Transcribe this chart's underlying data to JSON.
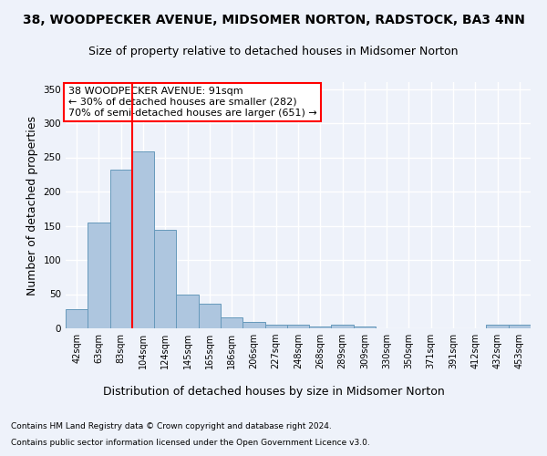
{
  "title": "38, WOODPECKER AVENUE, MIDSOMER NORTON, RADSTOCK, BA3 4NN",
  "subtitle": "Size of property relative to detached houses in Midsomer Norton",
  "xlabel": "Distribution of detached houses by size in Midsomer Norton",
  "ylabel": "Number of detached properties",
  "categories": [
    "42sqm",
    "63sqm",
    "83sqm",
    "104sqm",
    "124sqm",
    "145sqm",
    "165sqm",
    "186sqm",
    "206sqm",
    "227sqm",
    "248sqm",
    "268sqm",
    "289sqm",
    "309sqm",
    "330sqm",
    "350sqm",
    "371sqm",
    "391sqm",
    "412sqm",
    "432sqm",
    "453sqm"
  ],
  "values": [
    28,
    155,
    232,
    259,
    144,
    49,
    36,
    16,
    9,
    6,
    5,
    3,
    5,
    3,
    0,
    0,
    0,
    0,
    0,
    5,
    5
  ],
  "bar_color": "#aec6df",
  "bar_edge_color": "#6699bb",
  "red_line_x": 2.5,
  "annotation_box_text": "38 WOODPECKER AVENUE: 91sqm\n← 30% of detached houses are smaller (282)\n70% of semi-detached houses are larger (651) →",
  "ylim": [
    0,
    360
  ],
  "yticks": [
    0,
    50,
    100,
    150,
    200,
    250,
    300,
    350
  ],
  "footer_line1": "Contains HM Land Registry data © Crown copyright and database right 2024.",
  "footer_line2": "Contains public sector information licensed under the Open Government Licence v3.0.",
  "background_color": "#eef2fa",
  "grid_color": "#ffffff",
  "title_fontsize": 10,
  "subtitle_fontsize": 9,
  "ylabel_fontsize": 9,
  "xlabel_fontsize": 9,
  "tick_fontsize": 7,
  "annotation_fontsize": 8,
  "footer_fontsize": 6.5
}
